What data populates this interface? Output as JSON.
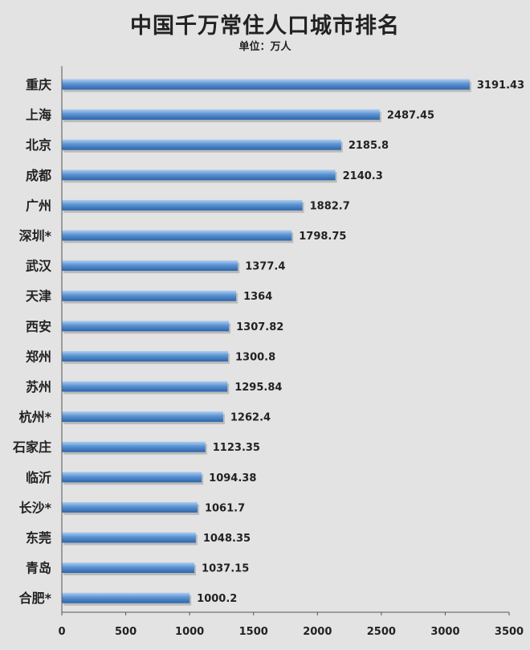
{
  "chart_data": {
    "type": "bar",
    "orientation": "horizontal",
    "title": "中国千万常住人口城市排名",
    "subtitle": "单位：万人",
    "categories": [
      "重庆",
      "上海",
      "北京",
      "成都",
      "广州",
      "深圳*",
      "武汉",
      "天津",
      "西安",
      "郑州",
      "苏州",
      "杭州*",
      "石家庄",
      "临沂",
      "长沙*",
      "东莞",
      "青岛",
      "合肥*"
    ],
    "values": [
      3191.43,
      2487.45,
      2185.8,
      2140.3,
      1882.7,
      1798.75,
      1377.4,
      1364,
      1307.82,
      1300.8,
      1295.84,
      1262.4,
      1123.35,
      1094.38,
      1061.7,
      1048.35,
      1037.15,
      1000.2
    ],
    "value_labels": [
      "3191.43",
      "2487.45",
      "2185.8",
      "2140.3",
      "1882.7",
      "1798.75",
      "1377.4",
      "1364",
      "1307.82",
      "1300.8",
      "1295.84",
      "1262.4",
      "1123.35",
      "1094.38",
      "1061.7",
      "1048.35",
      "1037.15",
      "1000.2"
    ],
    "xlim": [
      0,
      3500
    ],
    "xticks": [
      "0",
      "500",
      "1000",
      "1500",
      "2000",
      "2500",
      "3000",
      "3500"
    ],
    "grid": false,
    "legend": "none",
    "colors": {
      "background": "#e3e3e3",
      "bar_top": "#aecdf0",
      "bar_mid": "#5b94d3",
      "bar_bottom": "#2d64a8",
      "axis": "#555555"
    }
  }
}
